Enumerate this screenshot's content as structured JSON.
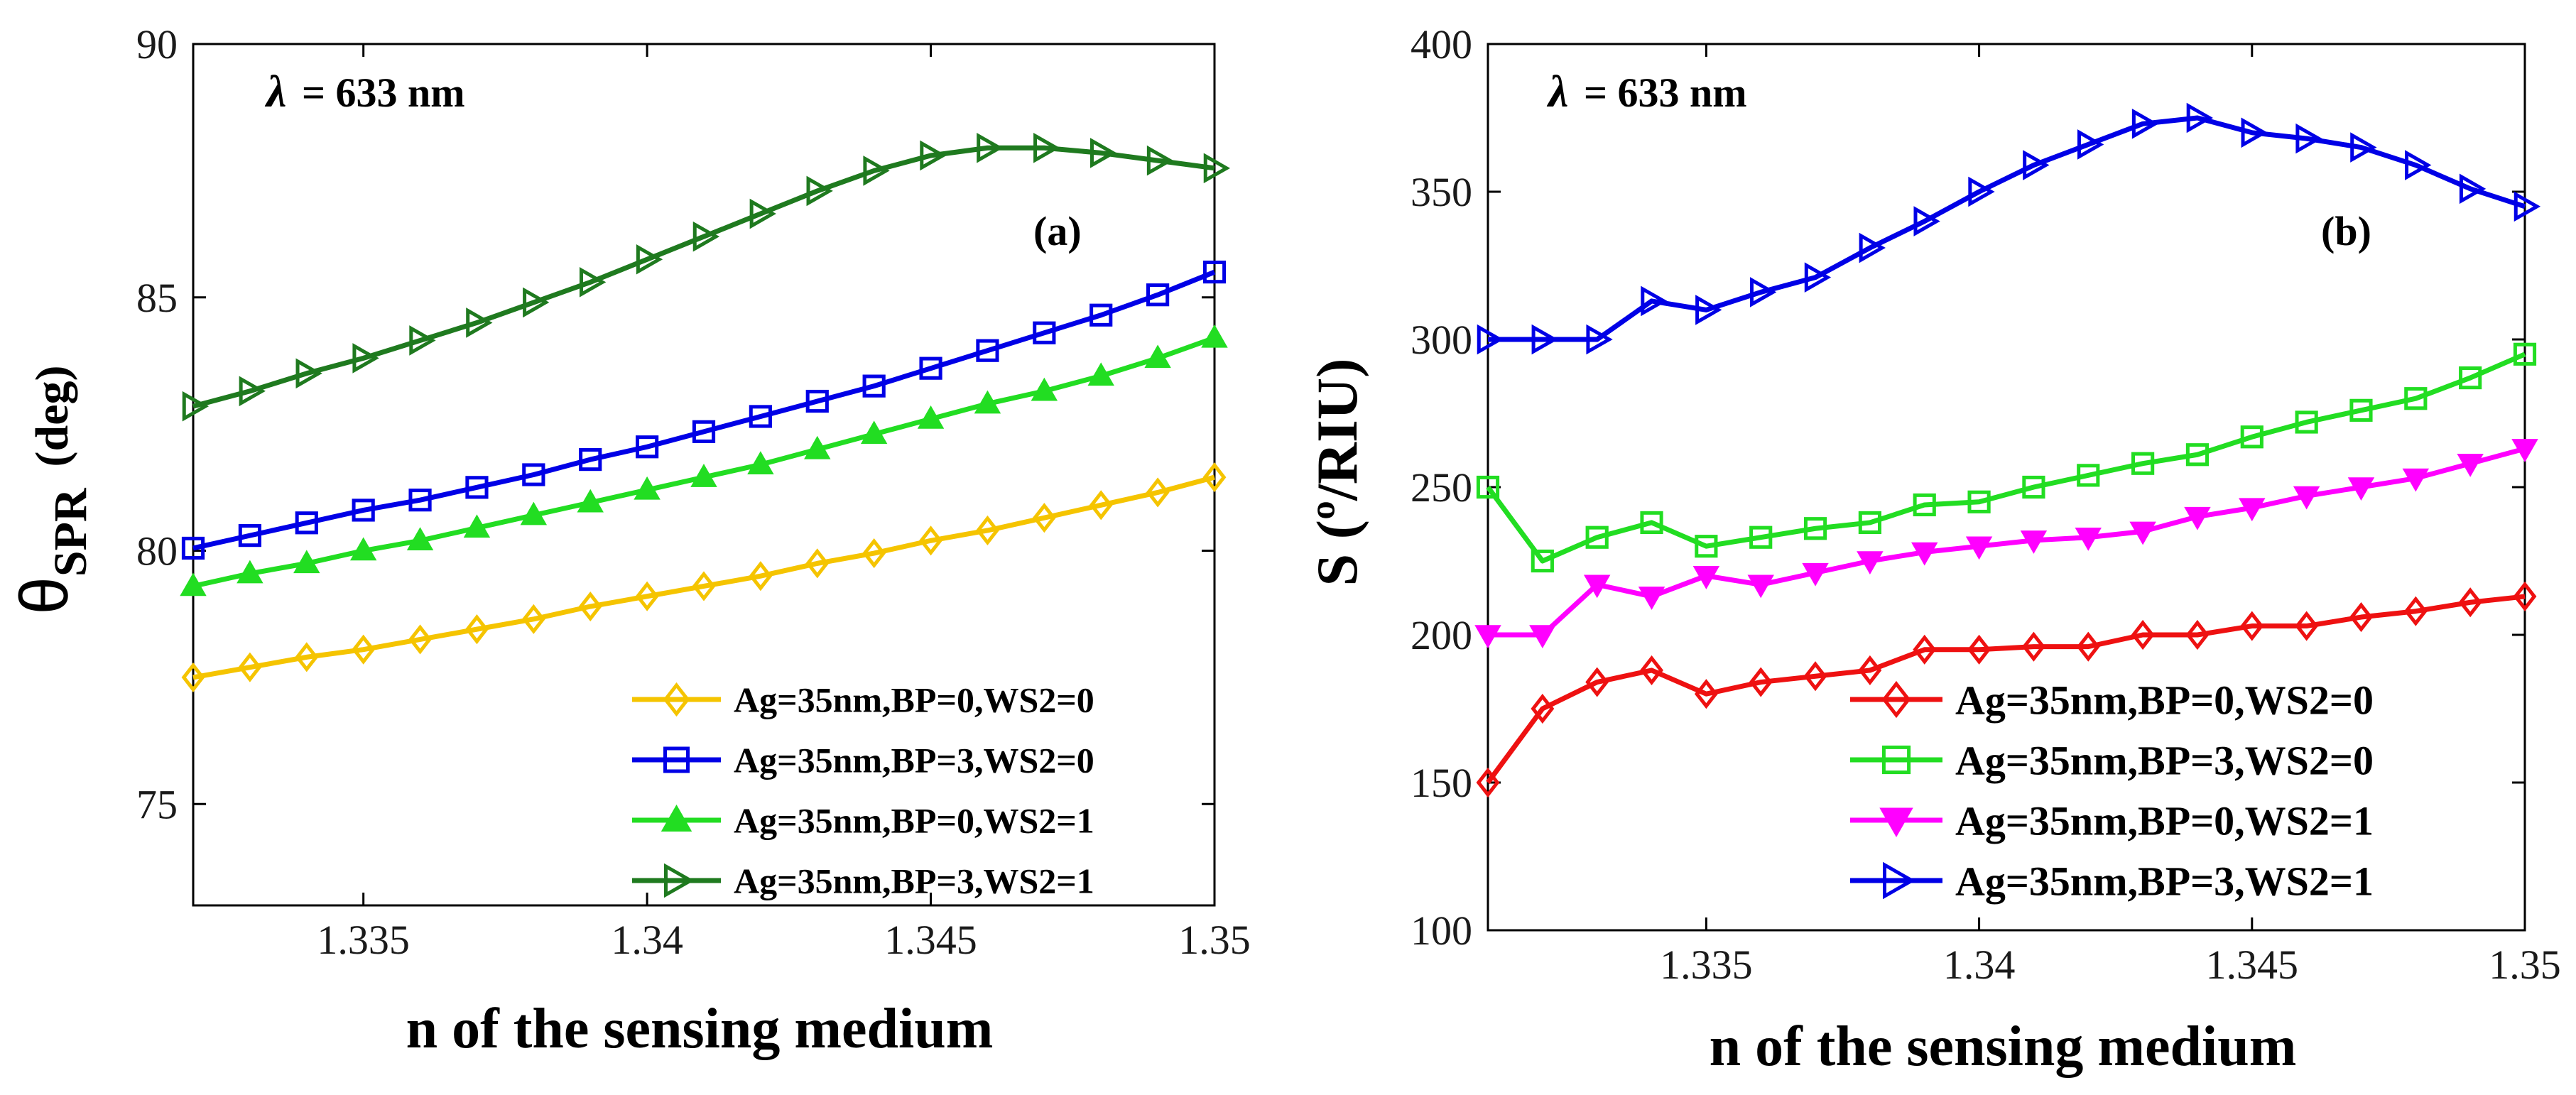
{
  "chart_data": [
    {
      "id": "a",
      "type": "line",
      "panel_label": "(a)",
      "annotation_symbol": "λ",
      "annotation_value": "= 633 nm",
      "xlabel": "n of the sensing medium",
      "ylabel_main": "θ",
      "ylabel_sub": "SPR",
      "ylabel_unit": "(deg)",
      "xlim": [
        1.332,
        1.35
      ],
      "ylim": [
        73,
        90
      ],
      "xticks": [
        1.335,
        1.34,
        1.345,
        1.35
      ],
      "xtick_labels": [
        "1.335",
        "1.34",
        "1.345",
        "1.35"
      ],
      "yticks": [
        75,
        80,
        85,
        90
      ],
      "ytick_labels": [
        "75",
        "80",
        "85",
        "90"
      ],
      "legend_location": "bottom-right",
      "x": [
        1.332,
        1.333,
        1.334,
        1.335,
        1.336,
        1.337,
        1.338,
        1.339,
        1.34,
        1.341,
        1.342,
        1.343,
        1.344,
        1.345,
        1.346,
        1.347,
        1.348,
        1.349,
        1.35
      ],
      "series": [
        {
          "name": "Ag=35nm,BP=0,WS2=0",
          "color": "#f5c400",
          "marker": "diamond",
          "values": [
            77.5,
            77.7,
            77.9,
            78.05,
            78.25,
            78.45,
            78.65,
            78.9,
            79.1,
            79.3,
            79.5,
            79.75,
            79.95,
            80.2,
            80.4,
            80.65,
            80.9,
            81.15,
            81.45
          ]
        },
        {
          "name": "Ag=35nm,BP=3,WS2=0",
          "color": "#0000e6",
          "marker": "square",
          "values": [
            80.05,
            80.3,
            80.55,
            80.8,
            81.0,
            81.25,
            81.5,
            81.8,
            82.05,
            82.35,
            82.65,
            82.95,
            83.25,
            83.6,
            83.95,
            84.3,
            84.65,
            85.05,
            85.5
          ]
        },
        {
          "name": "Ag=35nm,BP=0,WS2=1",
          "color": "#22dd22",
          "marker": "triangle-up",
          "values": [
            79.3,
            79.55,
            79.75,
            80.0,
            80.2,
            80.45,
            80.7,
            80.95,
            81.2,
            81.45,
            81.7,
            82.0,
            82.3,
            82.6,
            82.9,
            83.15,
            83.45,
            83.8,
            84.2
          ]
        },
        {
          "name": "Ag=35nm,BP=3,WS2=1",
          "color": "#1f7a1f",
          "marker": "triangle-right",
          "values": [
            82.85,
            83.15,
            83.5,
            83.8,
            84.15,
            84.5,
            84.9,
            85.3,
            85.75,
            86.2,
            86.65,
            87.1,
            87.5,
            87.8,
            87.95,
            87.95,
            87.85,
            87.7,
            87.55
          ]
        }
      ]
    },
    {
      "id": "b",
      "type": "line",
      "panel_label": "(b)",
      "annotation_symbol": "λ",
      "annotation_value": "= 633 nm",
      "xlabel": "n of the sensing medium",
      "ylabel": "S  (º/RIU)",
      "xlim": [
        1.331,
        1.35
      ],
      "ylim": [
        100,
        400
      ],
      "xticks": [
        1.335,
        1.34,
        1.345,
        1.35
      ],
      "xtick_labels": [
        "1.335",
        "1.34",
        "1.345",
        "1.35"
      ],
      "yticks": [
        100,
        150,
        200,
        250,
        300,
        350,
        400
      ],
      "ytick_labels": [
        "100",
        "150",
        "200",
        "250",
        "300",
        "350",
        "400"
      ],
      "legend_location": "bottom-right",
      "x": [
        1.331,
        1.332,
        1.333,
        1.334,
        1.335,
        1.336,
        1.337,
        1.338,
        1.339,
        1.34,
        1.341,
        1.342,
        1.343,
        1.344,
        1.345,
        1.346,
        1.347,
        1.348,
        1.349,
        1.35
      ],
      "series": [
        {
          "name": "Ag=35nm,BP=0,WS2=0",
          "color": "#ee1111",
          "marker": "diamond",
          "values": [
            150,
            175,
            184,
            188,
            180,
            184,
            186,
            188,
            195,
            195,
            196,
            196,
            200,
            200,
            203,
            203,
            206,
            208,
            211,
            213
          ]
        },
        {
          "name": "Ag=35nm,BP=3,WS2=0",
          "color": "#22dd22",
          "marker": "square",
          "values": [
            250,
            225,
            233,
            238,
            230,
            233,
            236,
            238,
            244,
            245,
            250,
            254,
            258,
            261,
            267,
            272,
            276,
            280,
            287,
            295
          ]
        },
        {
          "name": "Ag=35nm,BP=0,WS2=1",
          "color": "#ff00ff",
          "marker": "triangle-down",
          "values": [
            200,
            200,
            217,
            213,
            220,
            217,
            221,
            225,
            228,
            230,
            232,
            233,
            235,
            240,
            243,
            247,
            250,
            253,
            258,
            263
          ]
        },
        {
          "name": "Ag=35nm,BP=3,WS2=1",
          "color": "#0000e6",
          "marker": "triangle-right",
          "values": [
            300,
            300,
            300,
            313,
            310,
            316,
            321,
            331,
            340,
            350,
            359,
            366,
            373,
            375,
            370,
            368,
            365,
            359,
            351,
            345
          ]
        }
      ]
    }
  ]
}
